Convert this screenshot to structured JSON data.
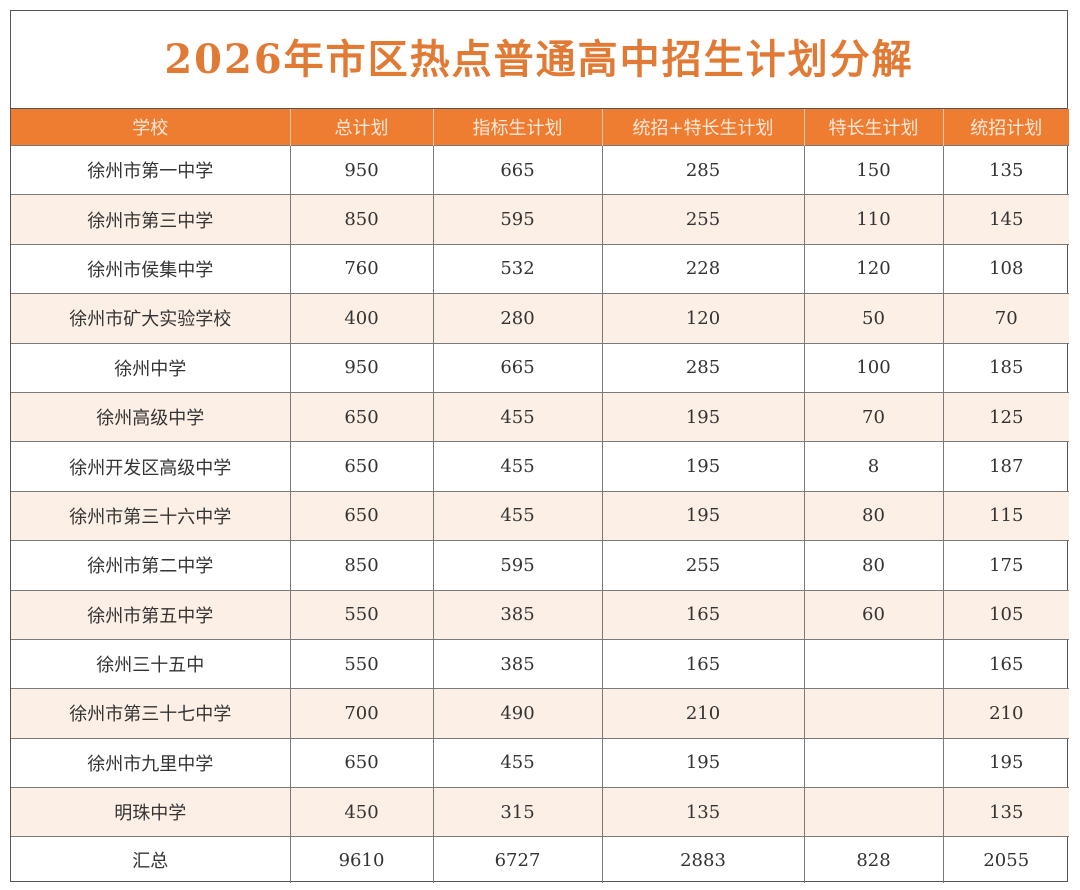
{
  "title": "2026年市区热点普通高中招生计划分解",
  "headers": [
    "学校",
    "总计划",
    "指标生计划",
    "统招+特长生计划",
    "特长生计划",
    "统招计划"
  ],
  "rows": [
    [
      "徐州市第一中学",
      "950",
      "665",
      "285",
      "150",
      "135"
    ],
    [
      "徐州市第三中学",
      "850",
      "595",
      "255",
      "110",
      "145"
    ],
    [
      "徐州市侯集中学",
      "760",
      "532",
      "228",
      "120",
      "108"
    ],
    [
      "徐州市矿大实验学校",
      "400",
      "280",
      "120",
      "50",
      "70"
    ],
    [
      "徐州中学",
      "950",
      "665",
      "285",
      "100",
      "185"
    ],
    [
      "徐州高级中学",
      "650",
      "455",
      "195",
      "70",
      "125"
    ],
    [
      "徐州开发区高级中学",
      "650",
      "455",
      "195",
      "8",
      "187"
    ],
    [
      "徐州市第三十六中学",
      "650",
      "455",
      "195",
      "80",
      "115"
    ],
    [
      "徐州市第二中学",
      "850",
      "595",
      "255",
      "80",
      "175"
    ],
    [
      "徐州市第五中学",
      "550",
      "385",
      "165",
      "60",
      "105"
    ],
    [
      "徐州三十五中",
      "550",
      "385",
      "165",
      "",
      "165"
    ],
    [
      "徐州市第三十七中学",
      "700",
      "490",
      "210",
      "",
      "210"
    ],
    [
      "徐州市九里中学",
      "650",
      "455",
      "195",
      "",
      "195"
    ],
    [
      "明珠中学",
      "450",
      "315",
      "135",
      "",
      "135"
    ]
  ],
  "total": [
    "汇总",
    "9610",
    "6727",
    "2883",
    "828",
    "2055"
  ]
}
